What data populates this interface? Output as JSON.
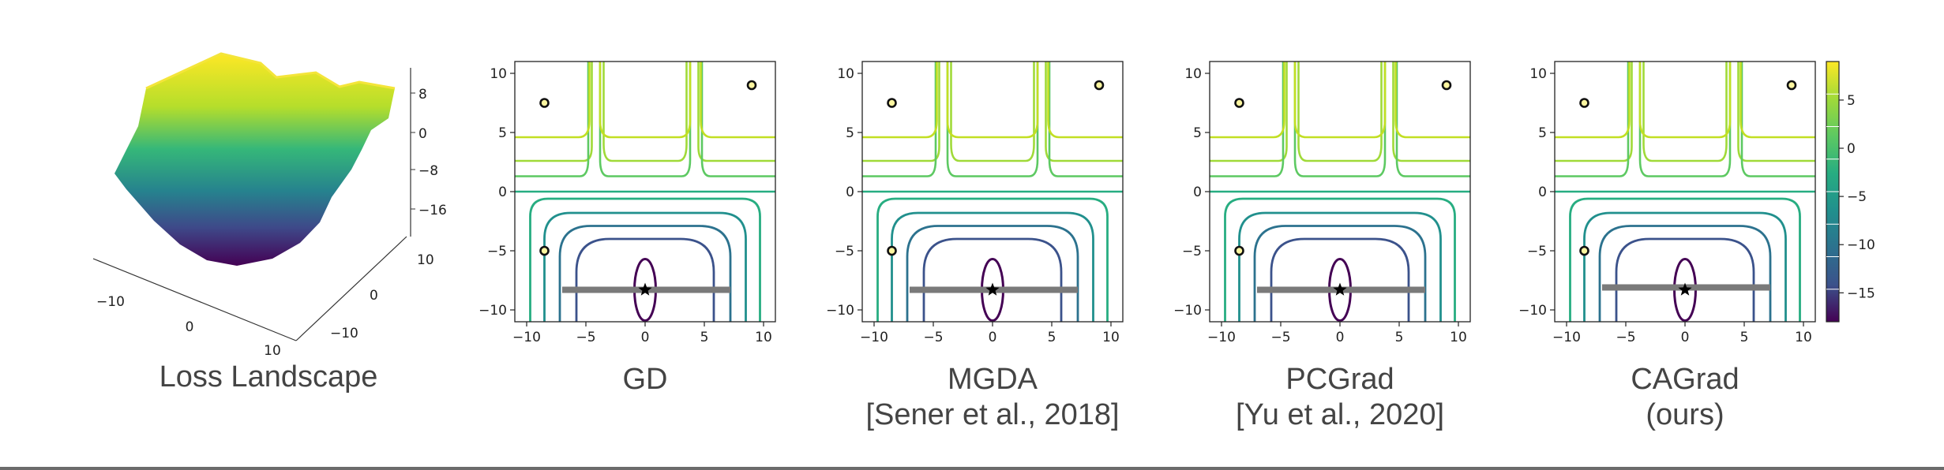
{
  "colors": {
    "contour_levels": [
      "#440154",
      "#3b528b",
      "#2c728e",
      "#21908d",
      "#27ad81",
      "#5dc962",
      "#a0da39",
      "#fde725"
    ],
    "axis": "#222222",
    "path": "#7a7a7a",
    "caption": "#444444"
  },
  "landscape": {
    "caption": "Loss Landscape",
    "z_ticks": [
      "8",
      "0",
      "−8",
      "−16"
    ],
    "x_ticks": [
      "−10",
      "0",
      "10"
    ],
    "y_ticks": [
      "10",
      "0",
      "−10"
    ]
  },
  "colorbar": {
    "ticks": [
      {
        "value": 5,
        "label": "5"
      },
      {
        "value": 0,
        "label": "0"
      },
      {
        "value": -5,
        "label": "−5"
      },
      {
        "value": -10,
        "label": "−10"
      },
      {
        "value": -15,
        "label": "−15"
      }
    ],
    "range": [
      -18,
      9
    ]
  },
  "chart_data": [
    {
      "type": "contour",
      "caption_lines": [
        "GD"
      ],
      "xlim": [
        -11,
        11
      ],
      "ylim": [
        -11,
        11
      ],
      "x_ticks": [
        -10,
        -5,
        0,
        5,
        10
      ],
      "y_ticks": [
        -10,
        -5,
        0,
        5,
        10
      ],
      "start_points": [
        [
          -8.5,
          7.5
        ],
        [
          9,
          9
        ],
        [
          -8.5,
          -5
        ]
      ],
      "optimum": [
        0,
        -8.3
      ],
      "path_segment": [
        [
          -7,
          -8.3
        ],
        [
          7.2,
          -8.3
        ]
      ],
      "final_point": [
        0,
        -8.3
      ]
    },
    {
      "type": "contour",
      "caption_lines": [
        "MGDA",
        "[Sener et al., 2018]"
      ],
      "xlim": [
        -11,
        11
      ],
      "ylim": [
        -11,
        11
      ],
      "x_ticks": [
        -10,
        -5,
        0,
        5,
        10
      ],
      "y_ticks": [
        -10,
        -5,
        0,
        5,
        10
      ],
      "start_points": [
        [
          -8.5,
          7.5
        ],
        [
          9,
          9
        ],
        [
          -8.5,
          -5
        ]
      ],
      "optimum": [
        0,
        -8.3
      ],
      "path_segment": [
        [
          -7,
          -8.3
        ],
        [
          7.2,
          -8.3
        ]
      ],
      "final_point": [
        0,
        -8.3
      ]
    },
    {
      "type": "contour",
      "caption_lines": [
        "PCGrad",
        "[Yu et al., 2020]"
      ],
      "xlim": [
        -11,
        11
      ],
      "ylim": [
        -11,
        11
      ],
      "x_ticks": [
        -10,
        -5,
        0,
        5,
        10
      ],
      "y_ticks": [
        -10,
        -5,
        0,
        5,
        10
      ],
      "start_points": [
        [
          -8.5,
          7.5
        ],
        [
          9,
          9
        ],
        [
          -8.5,
          -5
        ]
      ],
      "optimum": [
        0,
        -8.3
      ],
      "path_segment": [
        [
          -7,
          -8.3
        ],
        [
          7.2,
          -8.3
        ]
      ],
      "final_point": [
        0,
        -8.3
      ]
    },
    {
      "type": "contour",
      "caption_lines": [
        "CAGrad",
        "(ours)"
      ],
      "xlim": [
        -11,
        11
      ],
      "ylim": [
        -11,
        11
      ],
      "x_ticks": [
        -10,
        -5,
        0,
        5,
        10
      ],
      "y_ticks": [
        -10,
        -5,
        0,
        5,
        10
      ],
      "start_points": [
        [
          -8.5,
          7.5
        ],
        [
          9,
          9
        ],
        [
          -8.5,
          -5
        ]
      ],
      "optimum": [
        0,
        -8.3
      ],
      "path_segment": [
        [
          -7,
          -8.1
        ],
        [
          7.2,
          -8.1
        ]
      ],
      "final_point": [
        0,
        -8.3
      ]
    }
  ]
}
